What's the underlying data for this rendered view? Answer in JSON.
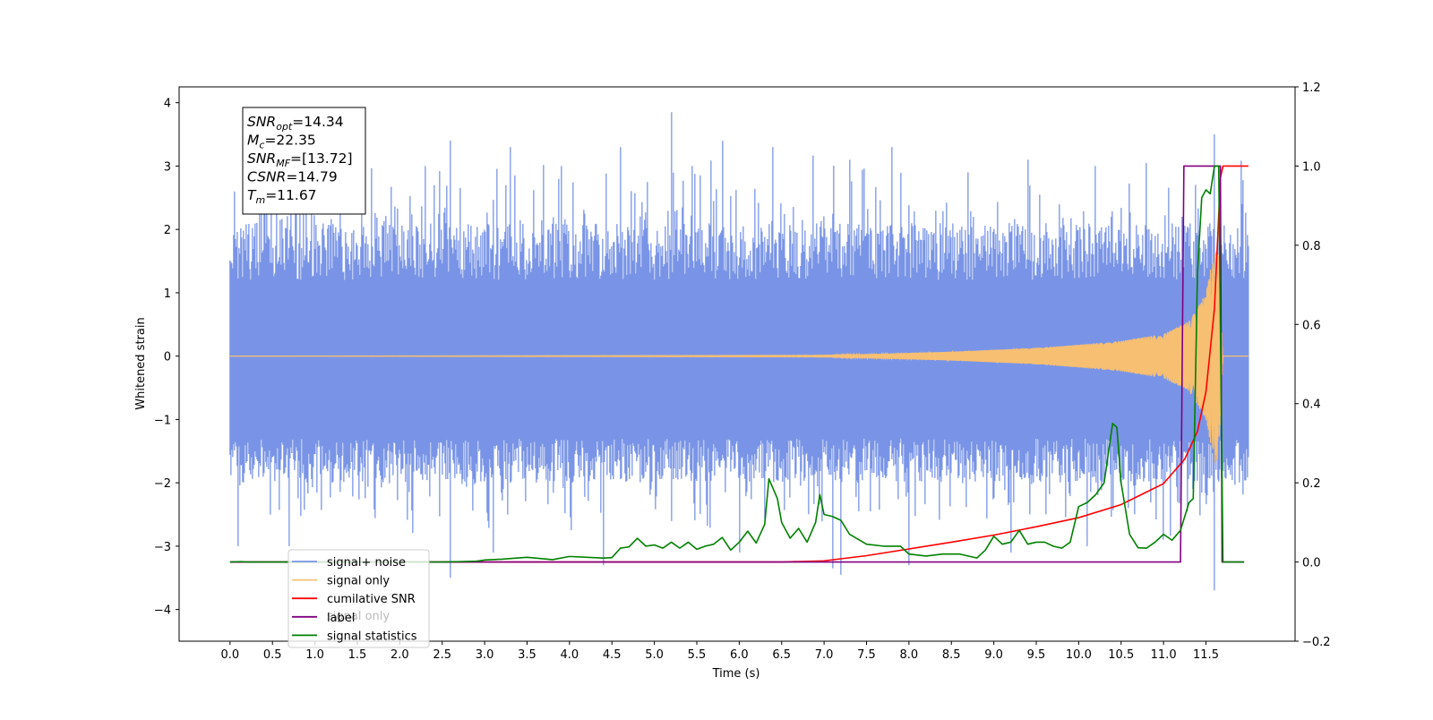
{
  "chart_data": {
    "type": "line",
    "xlabel": "Time (s)",
    "ylabel": "Whitened strain",
    "xlim": [
      -0.6,
      12.55
    ],
    "ylim": [
      -4.5,
      4.25
    ],
    "y2lim": [
      -0.2,
      1.2
    ],
    "x_ticks": [
      "0.0",
      "0.5",
      "1.0",
      "1.5",
      "2.0",
      "2.5",
      "3.0",
      "3.5",
      "4.0",
      "4.5",
      "5.0",
      "5.5",
      "6.0",
      "6.5",
      "7.0",
      "7.5",
      "8.0",
      "8.5",
      "9.0",
      "9.5",
      "10.0",
      "10.5",
      "11.0",
      "11.5"
    ],
    "y_ticks": [
      "4",
      "3",
      "2",
      "1",
      "0",
      "−1",
      "−2",
      "−3",
      "−4"
    ],
    "y2_ticks": [
      "1.2",
      "1.0",
      "0.8",
      "0.6",
      "0.4",
      "0.2",
      "0.0",
      "−0.2"
    ],
    "grid": false,
    "legend_position": "lower-left",
    "legend": [
      "signal+ noise",
      "signal only",
      "cumilative SNR",
      "label",
      "signal statistics"
    ],
    "legend_hidden_behind": [
      {
        "text": "signal only",
        "position": "under-entry-3"
      },
      {
        "text": "",
        "position": "under-entry-4"
      }
    ],
    "annotation": {
      "lines": [
        {
          "sym": "SNR",
          "sub": "opt",
          "value": "=14.34"
        },
        {
          "sym": "M",
          "sub": "c",
          "value": "=22.35"
        },
        {
          "sym": "SNR",
          "sub": "MF",
          "value": "=[13.72]"
        },
        {
          "sym": "CSNR",
          "sub": "",
          "value": "=14.79"
        },
        {
          "sym": "T",
          "sub": "m",
          "value": "=11.67"
        }
      ]
    },
    "series": [
      {
        "name": "signal+ noise",
        "axis": "left",
        "color": "#7994e6",
        "t_range": [
          0.0,
          12.0
        ],
        "noise_band": [
          -2.0,
          2.1
        ],
        "max_spikes": [
          [
            0.05,
            2.6
          ],
          [
            0.35,
            2.7
          ],
          [
            0.9,
            3.0
          ],
          [
            1.3,
            2.6
          ],
          [
            2.3,
            3.0
          ],
          [
            2.6,
            3.4
          ],
          [
            3.3,
            3.3
          ],
          [
            3.9,
            3.0
          ],
          [
            4.6,
            3.3
          ],
          [
            5.2,
            3.85
          ],
          [
            5.45,
            3.0
          ],
          [
            5.8,
            3.4
          ],
          [
            6.4,
            3.3
          ],
          [
            7.3,
            3.1
          ],
          [
            7.8,
            3.3
          ],
          [
            8.7,
            2.9
          ],
          [
            9.4,
            3.1
          ],
          [
            10.2,
            3.0
          ],
          [
            10.8,
            3.05
          ],
          [
            11.22,
            2.2
          ],
          [
            11.6,
            3.5
          ]
        ],
        "min_spikes": [
          [
            0.1,
            -3.0
          ],
          [
            0.7,
            -3.0
          ],
          [
            2.6,
            -3.5
          ],
          [
            3.1,
            -3.1
          ],
          [
            4.4,
            -3.3
          ],
          [
            6.0,
            -3.1
          ],
          [
            7.1,
            -3.35
          ],
          [
            7.2,
            -3.45
          ],
          [
            8.0,
            -3.3
          ],
          [
            9.2,
            -3.1
          ],
          [
            10.1,
            -3.0
          ],
          [
            11.0,
            -2.9
          ],
          [
            11.6,
            -3.7
          ]
        ]
      },
      {
        "name": "signal only",
        "axis": "left",
        "color": "#f6bf72",
        "t_range": [
          0.0,
          12.0
        ],
        "amplitude": [
          [
            0.0,
            0.0
          ],
          [
            7.0,
            0.01
          ],
          [
            7.5,
            0.03
          ],
          [
            8.0,
            0.05
          ],
          [
            8.5,
            0.07
          ],
          [
            9.0,
            0.1
          ],
          [
            9.5,
            0.13
          ],
          [
            10.0,
            0.18
          ],
          [
            10.5,
            0.24
          ],
          [
            11.0,
            0.35
          ],
          [
            11.3,
            0.55
          ],
          [
            11.5,
            1.0
          ],
          [
            11.6,
            1.7
          ],
          [
            11.65,
            1.6
          ],
          [
            11.7,
            0.0
          ],
          [
            12.0,
            0.0
          ]
        ]
      },
      {
        "name": "cumilative SNR",
        "axis": "right",
        "color": "#ff0000",
        "x": [
          0.0,
          6.5,
          7.0,
          7.5,
          8.0,
          8.5,
          9.0,
          9.5,
          10.0,
          10.5,
          11.0,
          11.25,
          11.4,
          11.5,
          11.6,
          11.67,
          11.7,
          12.0
        ],
        "y": [
          0.0,
          0.0,
          0.003,
          0.016,
          0.033,
          0.05,
          0.068,
          0.089,
          0.112,
          0.145,
          0.198,
          0.26,
          0.33,
          0.43,
          0.64,
          0.97,
          1.0,
          1.0
        ]
      },
      {
        "name": "label",
        "axis": "right",
        "color": "#800080",
        "x": [
          0.0,
          11.2,
          11.24,
          11.67,
          11.69,
          11.95
        ],
        "y": [
          0.0,
          0.0,
          1.0,
          1.0,
          0.0,
          0.0
        ]
      },
      {
        "name": "signal statistics",
        "axis": "right",
        "color": "#008000",
        "x": [
          0.0,
          0.13,
          0.2,
          1.0,
          2.0,
          2.5,
          2.9,
          3.0,
          3.2,
          3.5,
          3.8,
          4.0,
          4.4,
          4.5,
          4.6,
          4.7,
          4.8,
          4.9,
          5.0,
          5.1,
          5.2,
          5.3,
          5.4,
          5.5,
          5.6,
          5.7,
          5.8,
          5.9,
          6.0,
          6.1,
          6.2,
          6.3,
          6.35,
          6.45,
          6.5,
          6.6,
          6.7,
          6.8,
          6.9,
          6.95,
          7.0,
          7.1,
          7.2,
          7.3,
          7.5,
          7.7,
          7.9,
          8.0,
          8.2,
          8.4,
          8.6,
          8.8,
          8.9,
          9.0,
          9.1,
          9.2,
          9.25,
          9.3,
          9.4,
          9.5,
          9.6,
          9.7,
          9.8,
          9.9,
          10.0,
          10.1,
          10.2,
          10.3,
          10.4,
          10.45,
          10.5,
          10.6,
          10.7,
          10.8,
          10.9,
          11.0,
          11.1,
          11.2,
          11.3,
          11.35,
          11.4,
          11.45,
          11.5,
          11.55,
          11.6,
          11.65,
          11.7,
          11.75,
          11.95
        ],
        "y": [
          0.0,
          0.001,
          0.0,
          0.0,
          0.0,
          0.0,
          0.002,
          0.005,
          0.007,
          0.012,
          0.006,
          0.014,
          0.01,
          0.011,
          0.035,
          0.038,
          0.06,
          0.04,
          0.043,
          0.035,
          0.05,
          0.035,
          0.05,
          0.032,
          0.04,
          0.045,
          0.062,
          0.03,
          0.05,
          0.078,
          0.048,
          0.095,
          0.21,
          0.16,
          0.1,
          0.06,
          0.085,
          0.05,
          0.1,
          0.17,
          0.12,
          0.115,
          0.105,
          0.07,
          0.045,
          0.04,
          0.04,
          0.02,
          0.015,
          0.02,
          0.02,
          0.01,
          0.03,
          0.065,
          0.045,
          0.05,
          0.065,
          0.08,
          0.045,
          0.05,
          0.05,
          0.04,
          0.035,
          0.05,
          0.14,
          0.15,
          0.17,
          0.2,
          0.35,
          0.34,
          0.2,
          0.07,
          0.036,
          0.035,
          0.05,
          0.07,
          0.055,
          0.08,
          0.15,
          0.16,
          0.73,
          0.92,
          0.94,
          0.93,
          1.0,
          1.0,
          0.0,
          0.0,
          0.0
        ]
      }
    ]
  }
}
